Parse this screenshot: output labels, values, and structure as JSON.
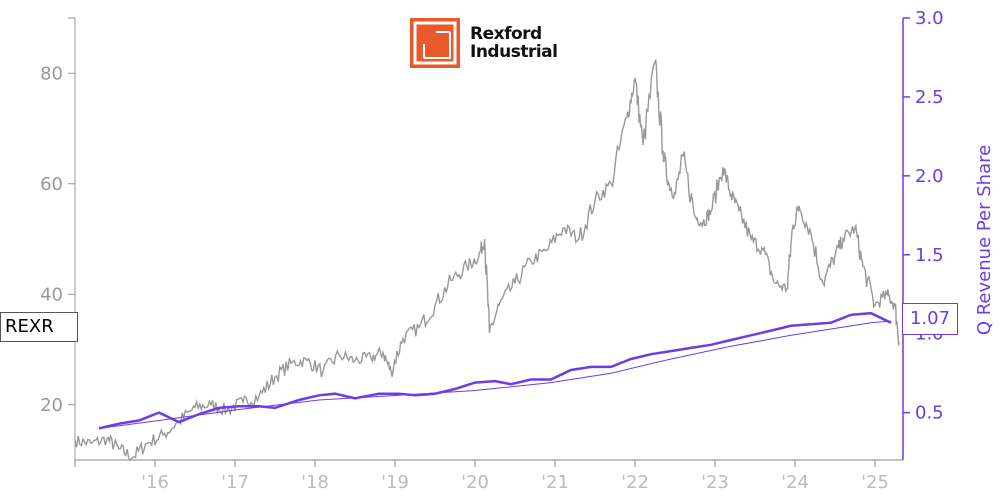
{
  "logo": {
    "line1": "Rexford",
    "line2": "Industrial"
  },
  "ticker_label": "REXR",
  "last_value_label": "1.07",
  "colors": {
    "price": "#999999",
    "revenue": "#6b3de8",
    "left_axis": "#999999",
    "right_axis": "#6b3de8",
    "logo": "#e85a2c"
  },
  "chart_data": {
    "type": "line",
    "title": "",
    "xlabel": "",
    "ylabel_left": "",
    "ylabel_right": "Q Revenue Per Share",
    "x_range": [
      2015.0,
      2025.35
    ],
    "ylim_left": [
      10,
      90
    ],
    "ylim_right": [
      0.2,
      3.0
    ],
    "x_ticks": [
      {
        "x": 2016,
        "label": "'16"
      },
      {
        "x": 2017,
        "label": "'17"
      },
      {
        "x": 2018,
        "label": "'18"
      },
      {
        "x": 2019,
        "label": "'19"
      },
      {
        "x": 2020,
        "label": "'20"
      },
      {
        "x": 2021,
        "label": "'21"
      },
      {
        "x": 2022,
        "label": "'22"
      },
      {
        "x": 2023,
        "label": "'23"
      },
      {
        "x": 2024,
        "label": "'24"
      },
      {
        "x": 2025,
        "label": "'25"
      }
    ],
    "left_ticks": [
      20,
      40,
      60,
      80
    ],
    "right_ticks": [
      0.5,
      1.0,
      1.5,
      2.0,
      2.5,
      3.0
    ],
    "grid": false,
    "series": [
      {
        "name": "REXR",
        "axis": "left",
        "x": [
          2015.0,
          2015.2,
          2015.4,
          2015.55,
          2015.72,
          2015.9,
          2016.1,
          2016.3,
          2016.5,
          2016.7,
          2016.9,
          2017.1,
          2017.3,
          2017.5,
          2017.7,
          2017.9,
          2018.1,
          2018.3,
          2018.5,
          2018.7,
          2018.85,
          2018.95,
          2019.1,
          2019.3,
          2019.5,
          2019.7,
          2019.9,
          2020.05,
          2020.12,
          2020.18,
          2020.3,
          2020.5,
          2020.7,
          2020.9,
          2021.1,
          2021.3,
          2021.5,
          2021.7,
          2021.9,
          2022.0,
          2022.1,
          2022.25,
          2022.35,
          2022.42,
          2022.5,
          2022.6,
          2022.75,
          2022.85,
          2022.95,
          2023.1,
          2023.2,
          2023.3,
          2023.45,
          2023.6,
          2023.75,
          2023.9,
          2023.97,
          2024.05,
          2024.2,
          2024.35,
          2024.5,
          2024.6,
          2024.75,
          2024.85,
          2025.0,
          2025.15,
          2025.25,
          2025.3
        ],
        "y": [
          13.5,
          13.0,
          13.8,
          12.0,
          10.5,
          13.0,
          14.5,
          17.0,
          19.5,
          20.0,
          19.0,
          20.5,
          21.5,
          25.0,
          27.5,
          28.0,
          26.0,
          29.0,
          28.0,
          28.5,
          29.5,
          26.0,
          32.0,
          34.0,
          38.0,
          42.5,
          45.0,
          47.0,
          50.0,
          33.0,
          38.0,
          42.0,
          46.0,
          48.0,
          52.0,
          50.0,
          57.0,
          60.0,
          72.0,
          79.0,
          67.0,
          82.0,
          66.0,
          60.0,
          58.0,
          65.0,
          54.0,
          53.0,
          55.0,
          63.0,
          58.0,
          55.0,
          50.0,
          48.0,
          42.0,
          41.0,
          52.0,
          56.0,
          51.0,
          42.0,
          47.0,
          50.0,
          52.0,
          45.0,
          38.0,
          40.0,
          38.0,
          31.5
        ]
      },
      {
        "name": "Q Revenue Per Share",
        "axis": "right",
        "x": [
          2015.3,
          2015.55,
          2015.8,
          2016.05,
          2016.3,
          2016.55,
          2016.8,
          2017.05,
          2017.3,
          2017.5,
          2017.8,
          2018.05,
          2018.25,
          2018.5,
          2018.8,
          2019.05,
          2019.25,
          2019.5,
          2019.75,
          2020.0,
          2020.25,
          2020.45,
          2020.7,
          2020.95,
          2021.2,
          2021.45,
          2021.7,
          2021.95,
          2022.2,
          2022.45,
          2022.7,
          2022.95,
          2023.2,
          2023.45,
          2023.7,
          2023.95,
          2024.2,
          2024.45,
          2024.7,
          2024.95,
          2025.2
        ],
        "y": [
          0.4,
          0.43,
          0.45,
          0.5,
          0.44,
          0.49,
          0.53,
          0.54,
          0.54,
          0.53,
          0.58,
          0.61,
          0.62,
          0.59,
          0.62,
          0.62,
          0.61,
          0.62,
          0.65,
          0.69,
          0.7,
          0.68,
          0.71,
          0.71,
          0.77,
          0.79,
          0.79,
          0.84,
          0.87,
          0.89,
          0.91,
          0.93,
          0.96,
          0.99,
          1.02,
          1.05,
          1.06,
          1.07,
          1.12,
          1.13,
          1.07
        ]
      },
      {
        "name": "",
        "axis": "right",
        "style": "thin",
        "x": [
          2015.3,
          2016.05,
          2017.05,
          2018.05,
          2019.05,
          2020.0,
          2020.95,
          2021.7,
          2022.45,
          2023.2,
          2023.95,
          2024.45,
          2024.95,
          2025.2
        ],
        "y": [
          0.4,
          0.45,
          0.52,
          0.58,
          0.61,
          0.64,
          0.69,
          0.75,
          0.84,
          0.92,
          0.99,
          1.03,
          1.07,
          1.08
        ]
      }
    ]
  }
}
